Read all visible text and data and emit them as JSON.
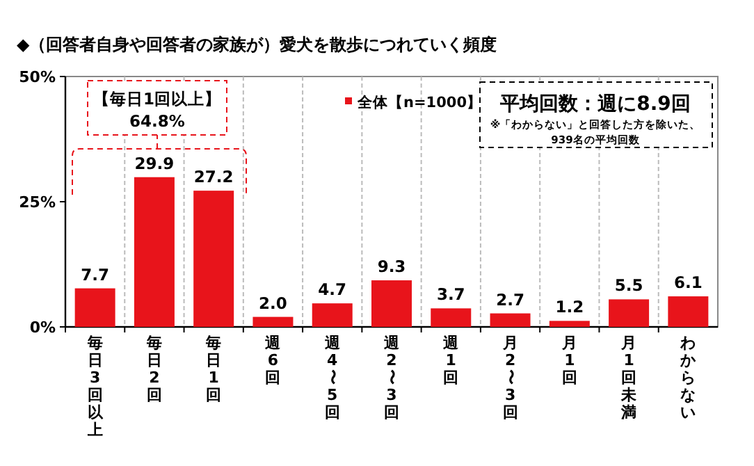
{
  "chart_data": {
    "type": "bar",
    "title": "◆（回答者自身や回答者の家族が）愛犬を散歩につれていく頻度",
    "categories": [
      "毎日3回以上",
      "毎日2回",
      "毎日1回",
      "週6回",
      "週4〜5回",
      "週2〜3回",
      "週1回",
      "月2〜3回",
      "月1回",
      "月1回未満",
      "わからない"
    ],
    "series": [
      {
        "name": "全体【n=1000】",
        "color": "#e8141b",
        "values": [
          7.7,
          29.9,
          27.2,
          2.0,
          4.7,
          9.3,
          3.7,
          2.7,
          1.2,
          5.5,
          6.1
        ]
      }
    ],
    "ylim": [
      0,
      50
    ],
    "yticks": [
      {
        "value": 0,
        "label": "0%"
      },
      {
        "value": 25,
        "label": "25%"
      },
      {
        "value": 50,
        "label": "50%"
      }
    ],
    "value_labels": [
      "7.7",
      "29.9",
      "27.2",
      "2.0",
      "4.7",
      "9.3",
      "3.7",
      "2.7",
      "1.2",
      "5.5",
      "6.1"
    ],
    "grid": "x",
    "legend": "top",
    "annotations": [
      "【毎日1回以上】",
      "64.8%",
      "平均回数：週に8.9回",
      "※「わからない」と回答した方を除いた、",
      "939名の平均回数"
    ]
  }
}
